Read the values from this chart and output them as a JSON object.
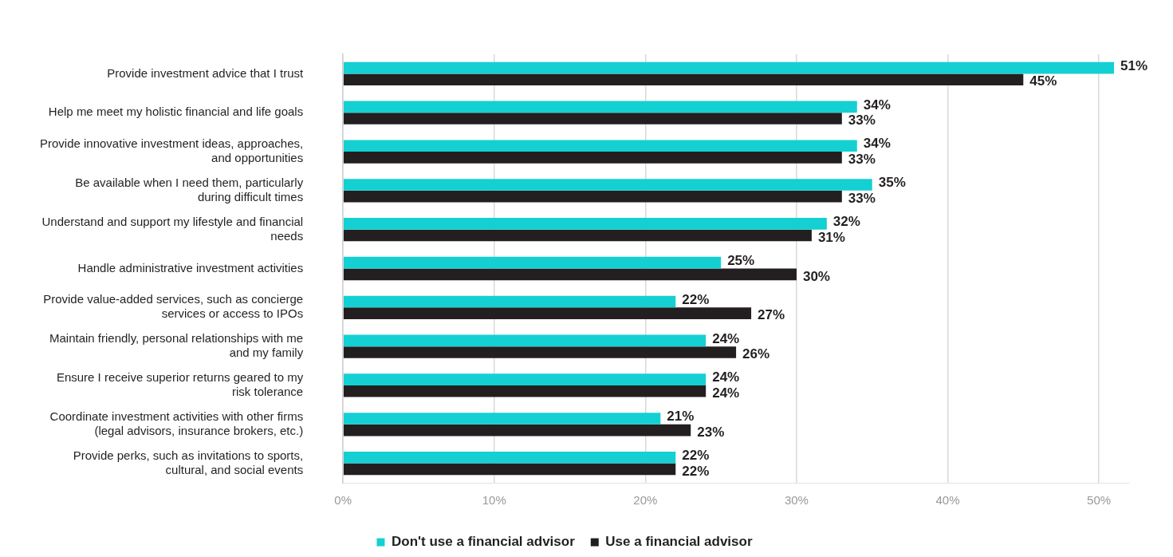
{
  "chart_data": {
    "type": "bar",
    "orientation": "horizontal",
    "categories": [
      "Provide investment advice that I trust",
      "Help me meet my holistic financial and life goals",
      "Provide innovative investment ideas, approaches, and opportunities",
      "Be available when I need them, particularly during difficult times",
      "Understand and support my lifestyle and financial needs",
      "Handle administrative investment activities",
      "Provide value-added services, such as concierge services or access to IPOs",
      "Maintain friendly, personal relationships with me and my family",
      "Ensure I receive superior returns geared to my risk tolerance",
      "Coordinate investment activities with other firms (legal advisors, insurance brokers, etc.)",
      "Provide perks, such as invitations to sports, cultural, and social events"
    ],
    "series": [
      {
        "name": "Don't use a financial advisor",
        "color": "#14d0d3",
        "values": [
          51,
          34,
          34,
          35,
          32,
          25,
          22,
          24,
          24,
          21,
          22
        ],
        "value_labels": [
          "51%",
          "34%",
          "34%",
          "35%",
          "32%",
          "25%",
          "22%",
          "24%",
          "24%",
          "21%",
          "22%"
        ]
      },
      {
        "name": "Use a financial advisor",
        "color": "#231f20",
        "values": [
          45,
          33,
          33,
          33,
          31,
          30,
          27,
          26,
          24,
          23,
          22
        ],
        "value_labels": [
          "45%",
          "33%",
          "33%",
          "33%",
          "31%",
          "30%",
          "27%",
          "26%",
          "24%",
          "23%",
          "22%"
        ]
      }
    ],
    "xlim": [
      0,
      52
    ],
    "xticks": [
      {
        "value": 0,
        "label": "0%"
      },
      {
        "value": 10,
        "label": "10%"
      },
      {
        "value": 20,
        "label": "20%"
      },
      {
        "value": 30,
        "label": "30%"
      },
      {
        "value": 40,
        "label": "40%"
      },
      {
        "value": 50,
        "label": "50%"
      }
    ],
    "grid": "x",
    "legend": "bottom"
  }
}
